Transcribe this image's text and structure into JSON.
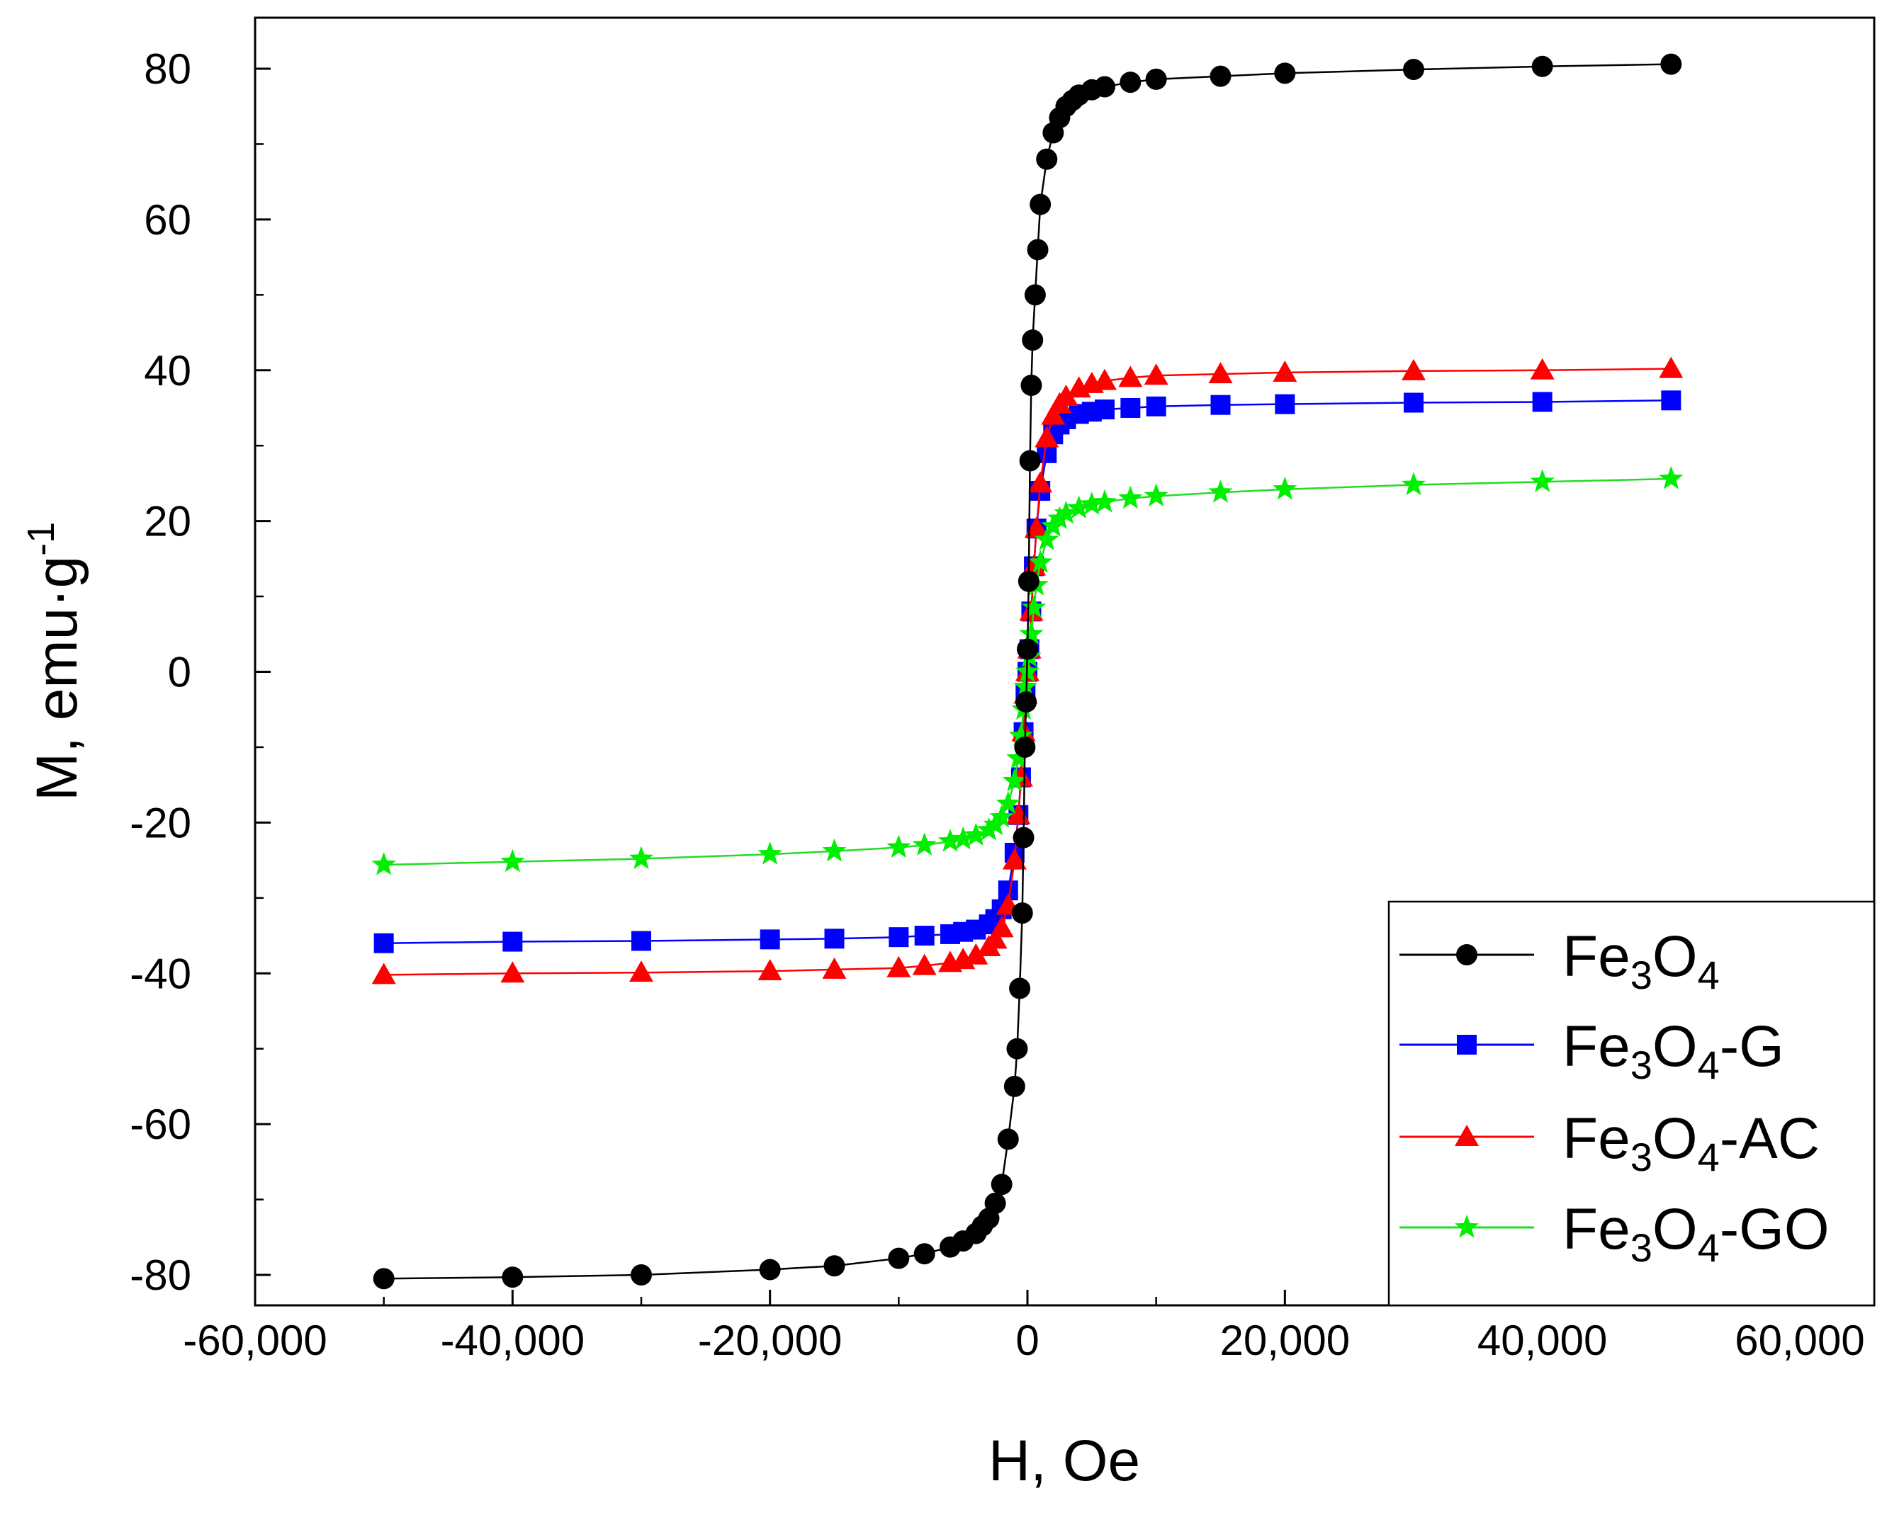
{
  "chart_data": {
    "type": "scatter",
    "title": "",
    "xlabel": "H, Oe",
    "ylabel_main": "M, emu·g",
    "ylabel_sup": "-1",
    "xlim": [
      -60000,
      60000
    ],
    "ylim": [
      -85,
      85
    ],
    "xticks": [
      -60000,
      -40000,
      -20000,
      0,
      20000,
      40000,
      60000
    ],
    "xtick_labels": [
      "-60,000",
      "-40,000",
      "-20,000",
      "0",
      "20,000",
      "40,000",
      "60,000"
    ],
    "yticks": [
      -80,
      -60,
      -40,
      -20,
      0,
      20,
      40,
      60,
      80
    ],
    "ytick_labels": [
      "-80",
      "-60",
      "-40",
      "-20",
      "0",
      "20",
      "40",
      "60",
      "80"
    ],
    "grid": false,
    "legend_position": "bottom-right",
    "series": [
      {
        "name": "Fe3O4",
        "label_base": "Fe",
        "label_sub1": "3",
        "label_mid": "O",
        "label_sub2": "4",
        "label_suffix": "",
        "color": "#000000",
        "line_color": "#000000",
        "marker": "circle",
        "x": [
          -50000,
          -40000,
          -30000,
          -20000,
          -15000,
          -10000,
          -8000,
          -6000,
          -5000,
          -4000,
          -3500,
          -3000,
          -2500,
          -2000,
          -1500,
          -1000,
          -800,
          -600,
          -400,
          -300,
          -200,
          -100,
          0,
          100,
          200,
          300,
          400,
          600,
          800,
          1000,
          1500,
          2000,
          2500,
          3000,
          3500,
          4000,
          5000,
          6000,
          8000,
          10000,
          15000,
          20000,
          30000,
          40000,
          50000
        ],
        "y": [
          -80.5,
          -80.3,
          -80,
          -79.3,
          -78.8,
          -77.8,
          -77.2,
          -76.3,
          -75.5,
          -74.5,
          -73.5,
          -72.5,
          -70.5,
          -68,
          -62,
          -55,
          -50,
          -42,
          -32,
          -22,
          -10,
          -4,
          3,
          12,
          28,
          38,
          44,
          50,
          56,
          62,
          68,
          71.5,
          73.5,
          75,
          75.8,
          76.5,
          77.2,
          77.6,
          78.2,
          78.6,
          79,
          79.4,
          79.9,
          80.3,
          80.6
        ]
      },
      {
        "name": "Fe3O4-G",
        "label_base": "Fe",
        "label_sub1": "3",
        "label_mid": "O",
        "label_sub2": "4",
        "label_suffix": "-G",
        "color": "#0000ff",
        "line_color": "#0000ff",
        "marker": "square",
        "x": [
          -50000,
          -40000,
          -30000,
          -20000,
          -15000,
          -10000,
          -8000,
          -6000,
          -5000,
          -4000,
          -3000,
          -2500,
          -2000,
          -1500,
          -1000,
          -700,
          -500,
          -300,
          -150,
          0,
          150,
          300,
          500,
          700,
          1000,
          1500,
          2000,
          2500,
          3000,
          4000,
          5000,
          6000,
          8000,
          10000,
          15000,
          20000,
          30000,
          40000,
          50000
        ],
        "y": [
          -36,
          -35.8,
          -35.7,
          -35.5,
          -35.4,
          -35.2,
          -35,
          -34.8,
          -34.5,
          -34.2,
          -33.5,
          -32.8,
          -31.5,
          -29,
          -24,
          -19,
          -14,
          -8,
          -3,
          0,
          3,
          8,
          14,
          19,
          24,
          29,
          31.5,
          32.8,
          33.5,
          34.2,
          34.5,
          34.8,
          35,
          35.2,
          35.4,
          35.5,
          35.7,
          35.8,
          36
        ]
      },
      {
        "name": "Fe3O4-AC",
        "label_base": "Fe",
        "label_sub1": "3",
        "label_mid": "O",
        "label_sub2": "4",
        "label_suffix": "-AC",
        "color": "#ff0000",
        "line_color": "#ff0000",
        "marker": "triangle",
        "x": [
          -50000,
          -40000,
          -30000,
          -20000,
          -15000,
          -10000,
          -8000,
          -6000,
          -5000,
          -4000,
          -3000,
          -2500,
          -2000,
          -1500,
          -1000,
          -700,
          -500,
          -300,
          -150,
          0,
          150,
          300,
          500,
          700,
          1000,
          1500,
          2000,
          2500,
          3000,
          4000,
          5000,
          6000,
          8000,
          10000,
          15000,
          20000,
          30000,
          40000,
          50000
        ],
        "y": [
          -40.2,
          -40,
          -39.9,
          -39.7,
          -39.5,
          -39.3,
          -39,
          -38.6,
          -38.2,
          -37.6,
          -36.5,
          -35.5,
          -34,
          -31,
          -25,
          -19,
          -14,
          -8,
          -3,
          0,
          3,
          8,
          14,
          19,
          25,
          31,
          34,
          35.5,
          36.5,
          37.6,
          38.2,
          38.6,
          39,
          39.3,
          39.5,
          39.7,
          39.9,
          40,
          40.2
        ]
      },
      {
        "name": "Fe3O4-GO",
        "label_base": "Fe",
        "label_sub1": "3",
        "label_mid": "O",
        "label_sub2": "4",
        "label_suffix": "-GO",
        "color": "#00ee00",
        "line_color": "#22dd22",
        "marker": "star",
        "x": [
          -50000,
          -40000,
          -30000,
          -20000,
          -15000,
          -10000,
          -8000,
          -6000,
          -5000,
          -4000,
          -3000,
          -2500,
          -2000,
          -1500,
          -1000,
          -700,
          -500,
          -300,
          -150,
          0,
          150,
          300,
          500,
          700,
          1000,
          1500,
          2000,
          2500,
          3000,
          4000,
          5000,
          6000,
          8000,
          10000,
          15000,
          20000,
          30000,
          40000,
          50000
        ],
        "y": [
          -25.6,
          -25.2,
          -24.8,
          -24.2,
          -23.8,
          -23.3,
          -23,
          -22.5,
          -22.2,
          -21.7,
          -21,
          -20.3,
          -19.3,
          -17.5,
          -14.5,
          -11.5,
          -8.5,
          -5,
          -2,
          0,
          2,
          5,
          8.5,
          11.5,
          14.5,
          17.5,
          19.3,
          20.3,
          21,
          21.7,
          22.2,
          22.5,
          23,
          23.3,
          23.8,
          24.2,
          24.8,
          25.2,
          25.6
        ]
      }
    ]
  }
}
